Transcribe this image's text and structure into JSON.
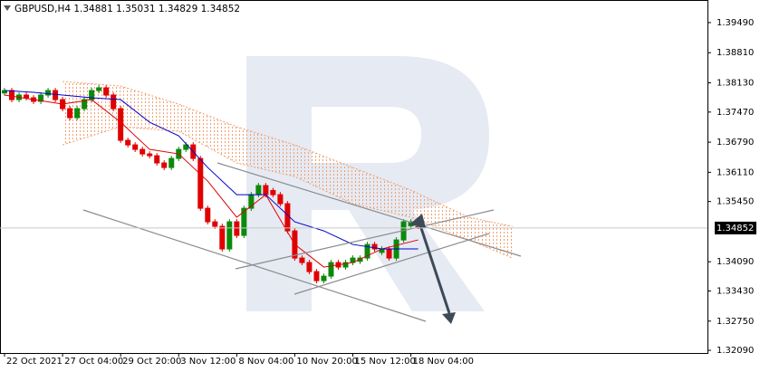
{
  "chart_data": {
    "type": "candlestick",
    "title": "GBPUSD,H4  1.34881 1.35031 1.34829 1.34852",
    "up_color": "#0a8a0a",
    "down_color": "#e00000",
    "xlim": [
      -0.625,
      96.875
    ],
    "ylim": [
      1.3203,
      1.4
    ],
    "xticks": [
      {
        "value": 0,
        "label": "22 Oct 2021"
      },
      {
        "value": 8,
        "label": "27 Oct 04:00"
      },
      {
        "value": 16,
        "label": "29 Oct 20:00"
      },
      {
        "value": 24,
        "label": "3 Nov 12:00"
      },
      {
        "value": 32,
        "label": "8 Nov 04:00"
      },
      {
        "value": 40,
        "label": "10 Nov 20:00"
      },
      {
        "value": 48,
        "label": "15 Nov 12:00"
      },
      {
        "value": 56,
        "label": "18 Nov 04:00"
      }
    ],
    "yticks": [
      {
        "value": 1.3949,
        "label": "1.39490"
      },
      {
        "value": 1.3881,
        "label": "1.38810"
      },
      {
        "value": 1.3813,
        "label": "1.38130"
      },
      {
        "value": 1.3747,
        "label": "1.37470"
      },
      {
        "value": 1.3679,
        "label": "1.36790"
      },
      {
        "value": 1.3611,
        "label": "1.36110"
      },
      {
        "value": 1.3545,
        "label": "1.35450"
      },
      {
        "value": 1.3409,
        "label": "1.34090"
      },
      {
        "value": 1.3343,
        "label": "1.33430"
      },
      {
        "value": 1.3275,
        "label": "1.32750"
      },
      {
        "value": 1.3209,
        "label": "1.32090"
      }
    ],
    "current_price": {
      "value": 1.34852,
      "label": "1.34852"
    },
    "candles": {
      "open": [
        1.379,
        1.37956,
        1.37751,
        1.37854,
        1.37792,
        1.37711,
        1.37854,
        1.37956,
        1.37751,
        1.37547,
        1.37343,
        1.37547,
        1.37751,
        1.37956,
        1.38017,
        1.37854,
        1.37547,
        1.36832,
        1.36729,
        1.36627,
        1.36525,
        1.36484,
        1.36321,
        1.36218,
        1.36423,
        1.36627,
        1.36729,
        1.36423,
        1.35298,
        1.34992,
        1.3489,
        1.34379,
        1.34992,
        1.34685,
        1.35298,
        1.35605,
        1.3581,
        1.357,
        1.35605,
        1.35401,
        1.34787,
        1.34174,
        1.34072,
        1.33868,
        1.33663,
        1.33765,
        1.34072,
        1.3397,
        1.34072,
        1.341,
        1.34174,
        1.34481,
        1.343,
        1.34379,
        1.34174,
        1.34583,
        1.349,
        1.34881
      ],
      "high": [
        1.38016,
        1.38016,
        1.37914,
        1.37914,
        1.37852,
        1.37914,
        1.38016,
        1.38016,
        1.37811,
        1.37607,
        1.37607,
        1.37811,
        1.38016,
        1.38077,
        1.38077,
        1.37914,
        1.37607,
        1.36892,
        1.36789,
        1.36687,
        1.36585,
        1.36544,
        1.36381,
        1.36483,
        1.36687,
        1.36789,
        1.36789,
        1.36483,
        1.35358,
        1.35052,
        1.3495,
        1.35052,
        1.35052,
        1.35358,
        1.35665,
        1.3587,
        1.3587,
        1.3576,
        1.35665,
        1.35461,
        1.34847,
        1.34234,
        1.34132,
        1.33928,
        1.33825,
        1.34132,
        1.34132,
        1.34132,
        1.34234,
        1.34234,
        1.34541,
        1.34541,
        1.34439,
        1.34439,
        1.34643,
        1.35052,
        1.35052,
        1.35031
      ],
      "low": [
        1.3784,
        1.37691,
        1.37691,
        1.37732,
        1.37651,
        1.37651,
        1.37794,
        1.37691,
        1.37487,
        1.37283,
        1.37283,
        1.37487,
        1.37691,
        1.37896,
        1.37794,
        1.37487,
        1.36772,
        1.36669,
        1.36567,
        1.36465,
        1.36424,
        1.36261,
        1.36158,
        1.36158,
        1.36363,
        1.36567,
        1.36363,
        1.35238,
        1.34932,
        1.3483,
        1.34319,
        1.34319,
        1.34625,
        1.34625,
        1.35238,
        1.35545,
        1.35545,
        1.35545,
        1.35341,
        1.34727,
        1.34114,
        1.34012,
        1.33808,
        1.33603,
        1.33603,
        1.33705,
        1.3391,
        1.3391,
        1.34012,
        1.3404,
        1.34114,
        1.34319,
        1.3424,
        1.34114,
        1.34114,
        1.34523,
        1.3484,
        1.34829
      ],
      "close": [
        1.37956,
        1.37751,
        1.37854,
        1.37792,
        1.37711,
        1.37854,
        1.37956,
        1.37751,
        1.37547,
        1.37343,
        1.37547,
        1.37751,
        1.37956,
        1.38017,
        1.37854,
        1.37547,
        1.36832,
        1.36729,
        1.36627,
        1.36525,
        1.36484,
        1.36321,
        1.36218,
        1.36423,
        1.36627,
        1.36729,
        1.36423,
        1.35298,
        1.34992,
        1.3489,
        1.34379,
        1.34992,
        1.34685,
        1.35298,
        1.35605,
        1.3581,
        1.35605,
        1.35605,
        1.35401,
        1.34787,
        1.34174,
        1.34072,
        1.33868,
        1.33663,
        1.33765,
        1.34072,
        1.3397,
        1.34072,
        1.34174,
        1.34174,
        1.34481,
        1.34379,
        1.34379,
        1.34174,
        1.34583,
        1.34992,
        1.34992,
        1.34852
      ]
    },
    "lines": [
      {
        "color": "#e00000",
        "x": [
          0,
          4,
          8,
          12,
          16,
          20,
          24,
          28,
          32,
          36,
          40,
          44,
          48,
          52,
          57
        ],
        "values": [
          1.37854,
          1.37751,
          1.37649,
          1.37751,
          1.3724,
          1.36627,
          1.36525,
          1.35912,
          1.35094,
          1.35605,
          1.34481,
          1.3397,
          1.34072,
          1.34379,
          1.34583
        ]
      },
      {
        "color": "#0000cc",
        "x": [
          0,
          4,
          8,
          12,
          16,
          20,
          24,
          28,
          32,
          36,
          40,
          44,
          48,
          52,
          57
        ],
        "values": [
          1.37956,
          1.37915,
          1.37854,
          1.37792,
          1.37751,
          1.3724,
          1.36934,
          1.36218,
          1.35605,
          1.35605,
          1.34992,
          1.34787,
          1.34481,
          1.34379,
          1.34379
        ]
      }
    ],
    "cloud": {
      "color": "#f0a070",
      "x": [
        8,
        16,
        24,
        32,
        40,
        48,
        56,
        64,
        70
      ],
      "span_a": [
        1.3816,
        1.38058,
        1.37649,
        1.37138,
        1.36729,
        1.36218,
        1.35707,
        1.35094,
        1.3489
      ],
      "span_b": [
        1.36729,
        1.37138,
        1.37036,
        1.36321,
        1.36014,
        1.35401,
        1.35094,
        1.34583,
        1.34174
      ]
    }
  }
}
